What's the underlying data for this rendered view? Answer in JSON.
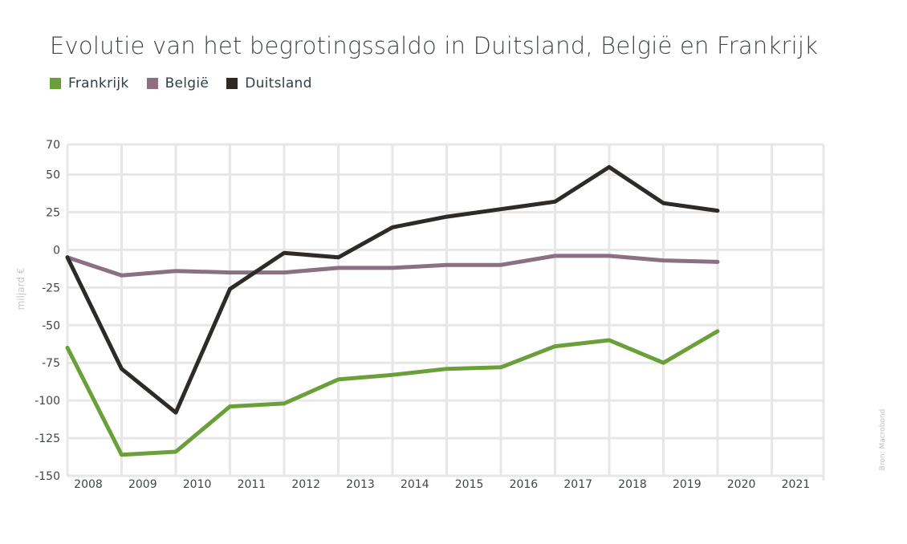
{
  "chart_data": {
    "type": "line",
    "title": "Evolutie van het begrotingssaldo in Duitsland, België en Frankrijk",
    "ylabel": "miljard €",
    "xlabel": "",
    "source": "Bron: Macrobond",
    "categories": [
      "2008",
      "2009",
      "2010",
      "2011",
      "2012",
      "2013",
      "2014",
      "2015",
      "2016",
      "2017",
      "2018",
      "2019",
      "2020",
      "2021"
    ],
    "yticks": [
      70,
      50,
      25,
      0,
      -25,
      -50,
      -75,
      -100,
      -125,
      -150
    ],
    "ylim": [
      -150,
      70
    ],
    "grid": true,
    "legend_position": "top-left",
    "series": [
      {
        "name": "Frankrijk",
        "color": "#6a9f3a",
        "values": [
          -65,
          -136,
          -134,
          -104,
          -102,
          -86,
          -83,
          -79,
          -78,
          -64,
          -60,
          -75,
          -54,
          null
        ]
      },
      {
        "name": "België",
        "color": "#8a7080",
        "values": [
          -5,
          -17,
          -14,
          -15,
          -15,
          -12,
          -12,
          -10,
          -10,
          -4,
          -4,
          -7,
          -8,
          null
        ]
      },
      {
        "name": "Duitsland",
        "color": "#2d2a28",
        "values": [
          -5,
          -79,
          -108,
          -26,
          -2,
          -5,
          15,
          22,
          27,
          32,
          55,
          31,
          26,
          null
        ]
      }
    ]
  }
}
